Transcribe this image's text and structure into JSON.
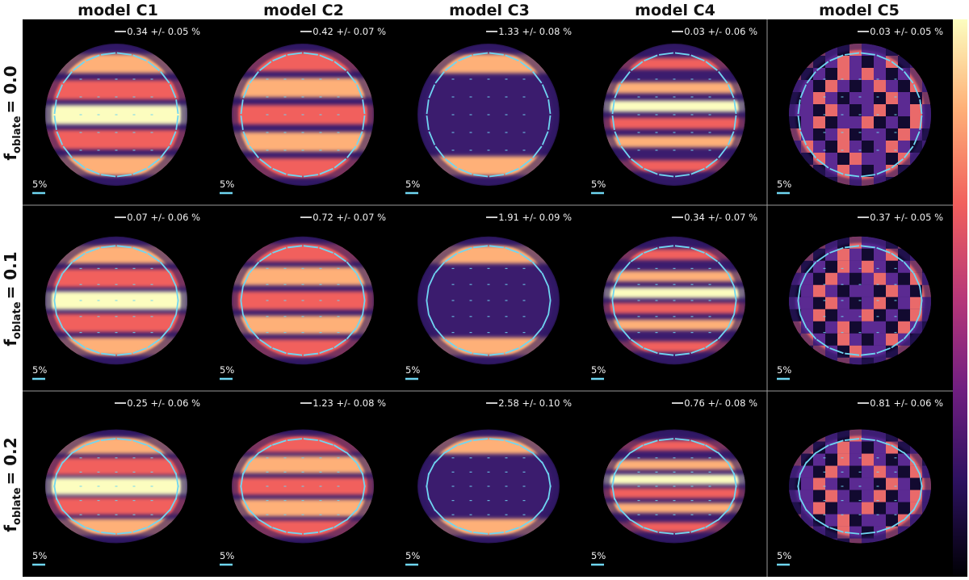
{
  "columns": [
    "model C1",
    "model C2",
    "model C3",
    "model C4",
    "model C5"
  ],
  "rows": [
    {
      "label_base": "f",
      "label_sub": "oblate",
      "label_value": "= 0.0",
      "oblateness": 0.0
    },
    {
      "label_base": "f",
      "label_sub": "oblate",
      "label_value": "= 0.1",
      "oblateness": 0.1
    },
    {
      "label_base": "f",
      "label_sub": "oblate",
      "label_value": "= 0.2",
      "oblateness": 0.2
    }
  ],
  "polarization": [
    [
      "0.34 +/- 0.05 %",
      "0.42 +/- 0.07 %",
      "1.33 +/- 0.08 %",
      "0.03 +/- 0.06 %",
      "0.03 +/- 0.05 %"
    ],
    [
      "0.07 +/- 0.06 %",
      "0.72 +/- 0.07 %",
      "1.91 +/- 0.09 %",
      "0.34 +/- 0.07 %",
      "0.37 +/- 0.05 %"
    ],
    [
      "0.25 +/- 0.06 %",
      "1.23 +/- 0.08 %",
      "2.58 +/- 0.10 %",
      "0.76 +/- 0.08 %",
      "0.81 +/- 0.06 %"
    ]
  ],
  "scale_label": "5%",
  "colors": {
    "panel_background": "#000000",
    "vector_color": "#6fd6f2",
    "colormap": "magma",
    "colormap_stops": [
      "#000004",
      "#2c115f",
      "#721f81",
      "#b73779",
      "#f1605d",
      "#feb078",
      "#fcfdbf"
    ]
  }
}
